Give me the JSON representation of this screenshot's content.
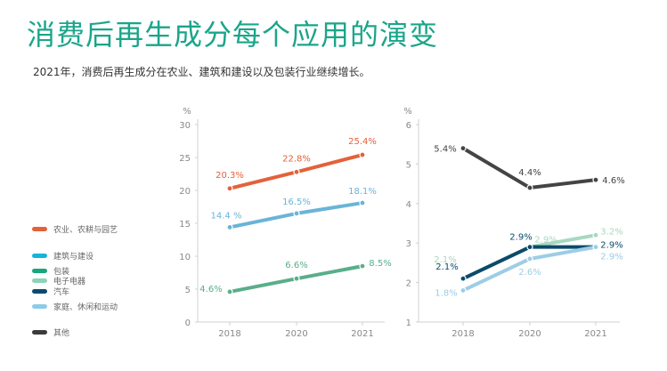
{
  "title": "消费后再生成分每个应用的演变",
  "subtitle": "2021年，消费后再生成分在农业、建筑和建设以及包装行业继续增长。",
  "legend": [
    {
      "label": "农业、农耕与园艺",
      "color": "#e4613a"
    },
    {
      "label": "建筑与建设",
      "color": "#16b4d9"
    },
    {
      "label": "包装",
      "color": "#17a67e"
    },
    {
      "label": "电子电器",
      "color": "#8dd3b8"
    },
    {
      "label": "汽车",
      "color": "#0a4b6b"
    },
    {
      "label": "家庭、休闲和运动",
      "color": "#8ecbe6"
    },
    {
      "label": "其他",
      "color": "#3b3b3b"
    }
  ],
  "chart_data": [
    {
      "type": "line",
      "ylabel": "%",
      "ylim": [
        0,
        30
      ],
      "yticks": [
        0,
        5,
        10,
        15,
        20,
        25,
        30
      ],
      "x": [
        "2018",
        "2020",
        "2021"
      ],
      "series": [
        {
          "name": "农业、农耕与园艺",
          "color": "#e4613a",
          "values": [
            20.3,
            22.8,
            25.4
          ],
          "labels": [
            "20.3%",
            "22.8%",
            "25.4%"
          ]
        },
        {
          "name": "家庭、休闲和运动",
          "color": "#6ab4d8",
          "values": [
            14.4,
            16.5,
            18.1
          ],
          "labels": [
            "14.4 %",
            "16.5%",
            "18.1%"
          ]
        },
        {
          "name": "包装",
          "color": "#5aae8a",
          "values": [
            4.6,
            6.6,
            8.5
          ],
          "labels": [
            "4.6%",
            "6.6%",
            "8.5%"
          ]
        }
      ]
    },
    {
      "type": "line",
      "ylabel": "%",
      "ylim": [
        1,
        6
      ],
      "yticks": [
        1,
        2,
        3,
        4,
        5,
        6
      ],
      "x": [
        "2018",
        "2020",
        "2021"
      ],
      "series": [
        {
          "name": "其他",
          "color": "#444444",
          "values": [
            5.4,
            4.4,
            4.6
          ],
          "labels": [
            "5.4%",
            "4.4%",
            "4.6%"
          ]
        },
        {
          "name": "电子电器",
          "color": "#a8d8c0",
          "values": [
            2.1,
            2.9,
            3.2
          ],
          "labels": [
            "2.1%",
            "2.9%",
            "3.2%"
          ]
        },
        {
          "name": "汽车",
          "color": "#0a4b6b",
          "values": [
            2.1,
            2.9,
            2.9
          ],
          "labels": [
            "2.1%",
            "2.9%",
            "2.9%"
          ]
        },
        {
          "name": "家庭、休闲和运动",
          "color": "#9ccde6",
          "values": [
            1.8,
            2.6,
            2.9
          ],
          "labels": [
            "1.8%",
            "2.6%",
            "2.9%"
          ]
        }
      ]
    }
  ]
}
